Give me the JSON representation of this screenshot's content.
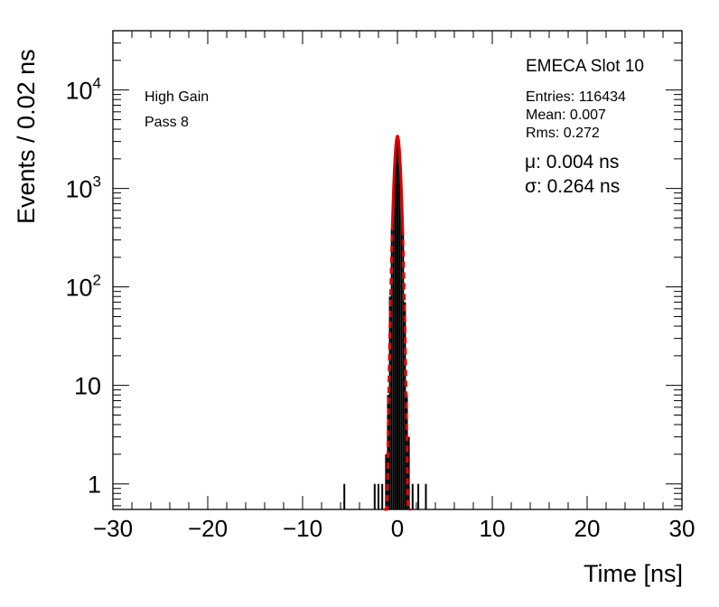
{
  "chart_data": {
    "type": "histogram",
    "title": "EMECA Slot 10",
    "xlabel": "Time [ns]",
    "ylabel": "Events / 0.02 ns",
    "xlim": [
      -30,
      30
    ],
    "ylim": [
      0.55,
      40000
    ],
    "log_y": true,
    "x_tick_labels": [
      "−30",
      "−20",
      "−10",
      "0",
      "10",
      "20",
      "30"
    ],
    "x_ticks": [
      -30,
      -20,
      -10,
      0,
      10,
      20,
      30
    ],
    "y_tick_labels": [
      {
        "value": 1,
        "base": "1",
        "exp": ""
      },
      {
        "value": 10,
        "base": "10",
        "exp": ""
      },
      {
        "value": 100,
        "base": "10",
        "exp": "2"
      },
      {
        "value": 1000,
        "base": "10",
        "exp": "3"
      },
      {
        "value": 10000,
        "base": "10",
        "exp": "4"
      }
    ],
    "annotations": [
      "High Gain",
      "Pass 8"
    ],
    "stats": [
      "Entries: 116434",
      "Mean: 0.007",
      "Rms: 0.272"
    ],
    "fit_params": [
      "μ: 0.004 ns",
      "σ: 0.264 ns"
    ],
    "fit": {
      "function": "gaussian",
      "mu": 0.004,
      "sigma": 0.264,
      "peak": 3400,
      "color": "#e00000"
    },
    "histogram": {
      "color": "#000000",
      "bins": [
        {
          "x": -5.6,
          "y": 1
        },
        {
          "x": -2.4,
          "y": 1
        },
        {
          "x": -2.0,
          "y": 1
        },
        {
          "x": -1.6,
          "y": 1
        },
        {
          "x": -1.2,
          "y": 2
        },
        {
          "x": -1.0,
          "y": 8
        },
        {
          "x": -0.8,
          "y": 80
        },
        {
          "x": -0.6,
          "y": 400
        },
        {
          "x": -0.4,
          "y": 1200
        },
        {
          "x": -0.2,
          "y": 2800
        },
        {
          "x": 0.0,
          "y": 3400
        },
        {
          "x": 0.2,
          "y": 2700
        },
        {
          "x": 0.4,
          "y": 1100
        },
        {
          "x": 0.6,
          "y": 380
        },
        {
          "x": 0.8,
          "y": 70
        },
        {
          "x": 1.0,
          "y": 8
        },
        {
          "x": 1.2,
          "y": 3
        },
        {
          "x": 1.6,
          "y": 1
        },
        {
          "x": 2.2,
          "y": 1
        },
        {
          "x": 3.0,
          "y": 1
        }
      ]
    }
  }
}
